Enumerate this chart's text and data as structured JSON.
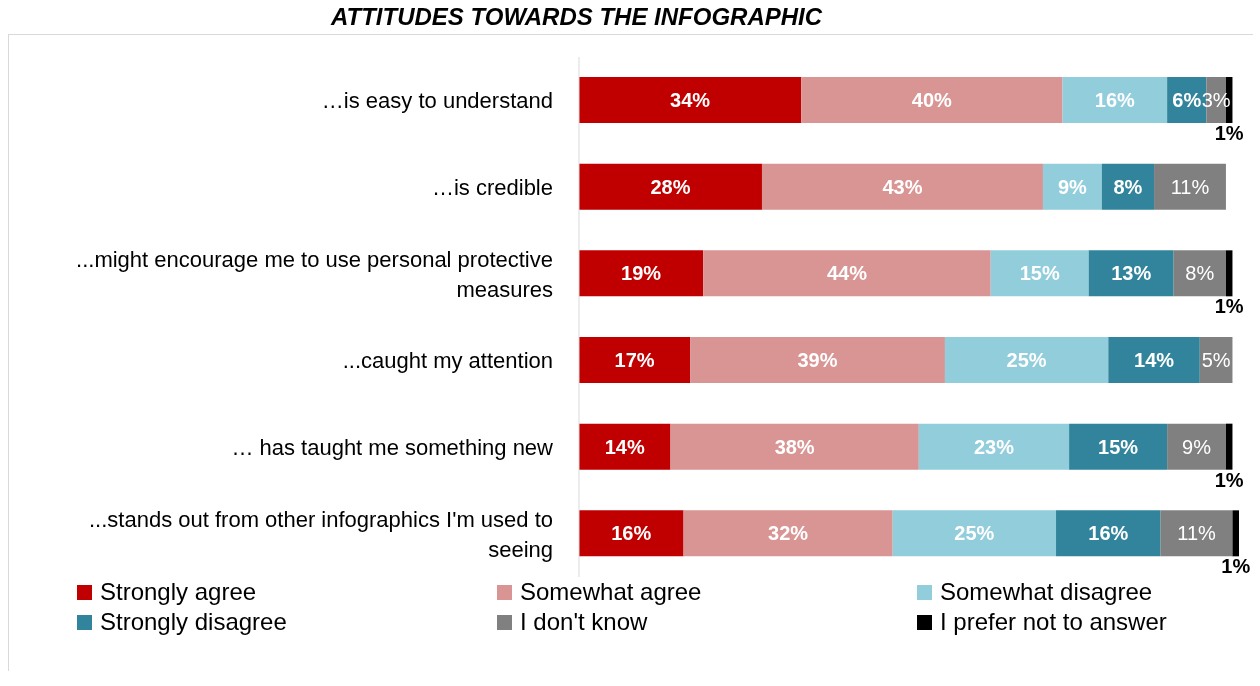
{
  "chart_data": {
    "type": "bar",
    "title": "ATTITUDES TOWARDS THE INFOGRAPHIC",
    "orientation": "horizontal",
    "stacked": true,
    "categories": [
      "…is easy to understand",
      "…is credible",
      "...might encourage me to use personal protective measures",
      "...caught my attention",
      "… has taught me something new",
      "...stands out from other infographics I'm used to seeing"
    ],
    "series": [
      {
        "name": "Strongly agree",
        "color": "#c00000",
        "values": [
          34,
          28,
          19,
          17,
          14,
          16
        ],
        "value_labels": [
          "34%",
          "28%",
          "19%",
          "17%",
          "14%",
          "16%"
        ]
      },
      {
        "name": "Somewhat agree",
        "color": "#d99594",
        "values": [
          40,
          43,
          44,
          39,
          38,
          32
        ],
        "value_labels": [
          "40%",
          "43%",
          "44%",
          "39%",
          "38%",
          "32%"
        ]
      },
      {
        "name": "Somewhat disagree",
        "color": "#92cddc",
        "values": [
          16,
          9,
          15,
          25,
          23,
          25
        ],
        "value_labels": [
          "16%",
          "9%",
          "15%",
          "25%",
          "23%",
          "25%"
        ]
      },
      {
        "name": "Strongly disagree",
        "color": "#31849b",
        "values": [
          6,
          8,
          13,
          14,
          15,
          16
        ],
        "value_labels": [
          "6%",
          "8%",
          "13%",
          "14%",
          "15%",
          "16%"
        ]
      },
      {
        "name": "I don't know",
        "color": "#808080",
        "values": [
          3,
          11,
          8,
          5,
          9,
          11
        ],
        "value_labels": [
          "3%",
          "11%",
          "8%",
          "5%",
          "9%",
          "11%"
        ]
      },
      {
        "name": "I prefer not to answer",
        "color": "#000000",
        "values": [
          1,
          null,
          1,
          null,
          1,
          1
        ],
        "value_labels": [
          "1%",
          null,
          "1%",
          null,
          "1%",
          "1%"
        ]
      }
    ],
    "legend": "bottom"
  }
}
